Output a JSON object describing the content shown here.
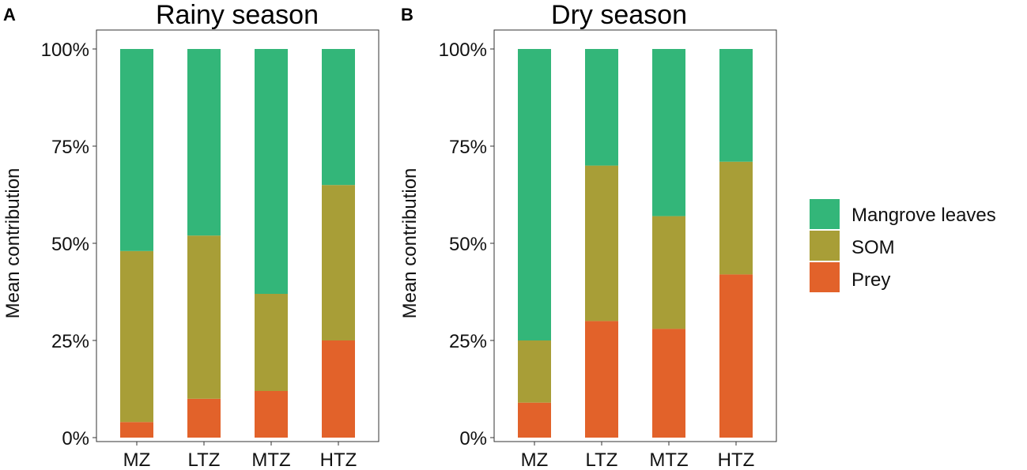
{
  "legend": {
    "items": [
      {
        "name": "Mangrove leaves",
        "color": "#33b679"
      },
      {
        "name": "SOM",
        "color": "#a89e37"
      },
      {
        "name": "Prey",
        "color": "#e2622a"
      }
    ]
  },
  "chart_data": [
    {
      "type": "bar",
      "stacked": true,
      "panel_label": "A",
      "title": "Rainy season",
      "xlabel": "",
      "ylabel": "Mean contribution",
      "categories": [
        "MZ",
        "LTZ",
        "MTZ",
        "HTZ"
      ],
      "ylim": [
        0,
        100
      ],
      "yticks": [
        0,
        25,
        50,
        75,
        100
      ],
      "ytick_labels": [
        "0%",
        "25%",
        "50%",
        "75%",
        "100%"
      ],
      "series": [
        {
          "name": "Prey",
          "values": [
            4,
            10,
            12,
            25
          ]
        },
        {
          "name": "SOM",
          "values": [
            44,
            42,
            25,
            40
          ]
        },
        {
          "name": "Mangrove leaves",
          "values": [
            52,
            48,
            63,
            35
          ]
        }
      ]
    },
    {
      "type": "bar",
      "stacked": true,
      "panel_label": "B",
      "title": "Dry season",
      "xlabel": "",
      "ylabel": "Mean contribution",
      "categories": [
        "MZ",
        "LTZ",
        "MTZ",
        "HTZ"
      ],
      "ylim": [
        0,
        100
      ],
      "yticks": [
        0,
        25,
        50,
        75,
        100
      ],
      "ytick_labels": [
        "0%",
        "25%",
        "50%",
        "75%",
        "100%"
      ],
      "series": [
        {
          "name": "Prey",
          "values": [
            9,
            30,
            28,
            42
          ]
        },
        {
          "name": "SOM",
          "values": [
            16,
            40,
            29,
            29
          ]
        },
        {
          "name": "Mangrove leaves",
          "values": [
            75,
            30,
            43,
            29
          ]
        }
      ]
    }
  ]
}
